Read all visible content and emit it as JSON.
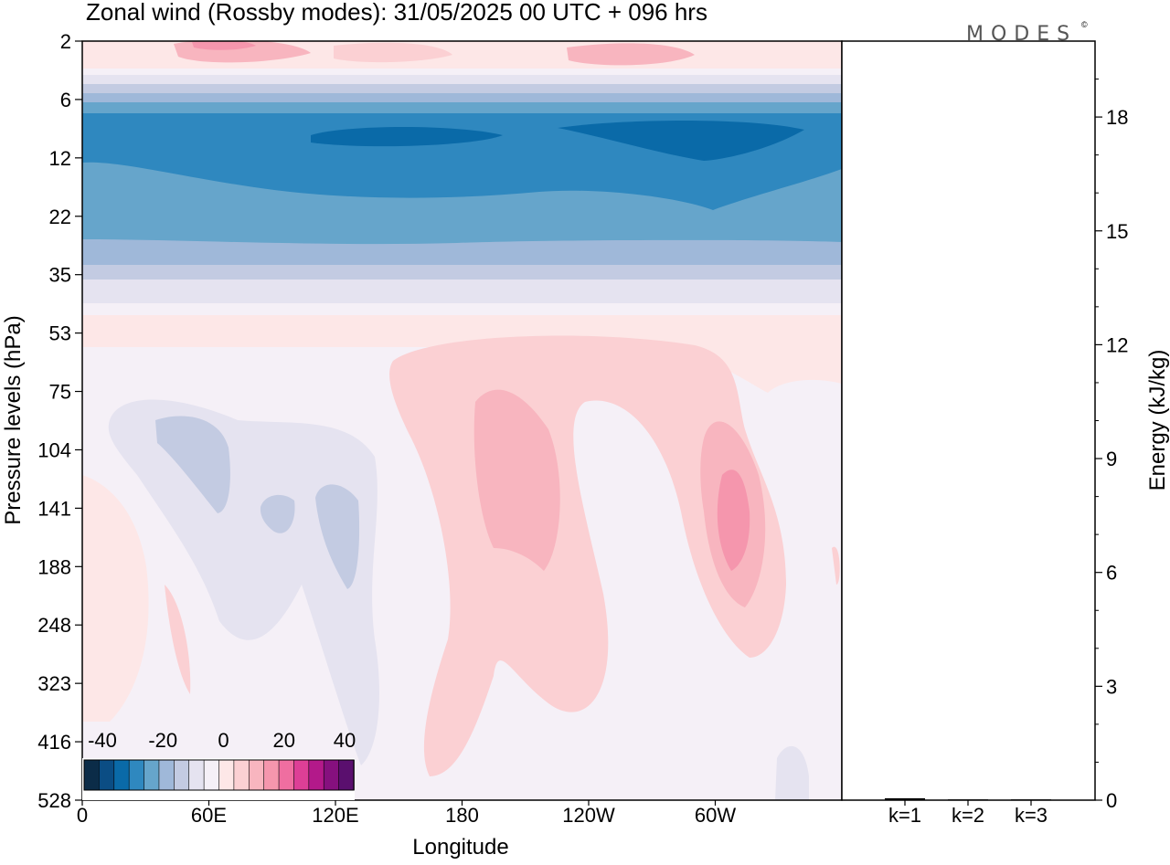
{
  "title": "Zonal wind (Rossby modes):  31/05/2025  00 UTC  + 096 hrs",
  "logo": "MODES",
  "logo_mark": "©",
  "chart_data": [
    {
      "type": "heatmap",
      "xlabel": "Longitude",
      "ylabel": "Pressure levels (hPa)",
      "x_ticks": [
        "0",
        "60E",
        "120E",
        "180",
        "120W",
        "60W"
      ],
      "y_ticks": [
        "2",
        "6",
        "12",
        "22",
        "35",
        "53",
        "75",
        "104",
        "141",
        "188",
        "248",
        "323",
        "416",
        "528"
      ],
      "y_scale": "log (pressure, increasing downward)",
      "colorbar": {
        "ticks": [
          "-40",
          "-20",
          "0",
          "20",
          "40"
        ],
        "colors": [
          "#0b2c48",
          "#0b4d84",
          "#0a6aa8",
          "#2f88bf",
          "#66a5cb",
          "#9fb8d9",
          "#c3cbe2",
          "#e5e3f0",
          "#f5f0f7",
          "#fde7e7",
          "#fbd0d3",
          "#f8b5bf",
          "#f596ad",
          "#ef6ea0",
          "#dd3f96",
          "#b3198a",
          "#86107e",
          "#5a0f6e"
        ]
      },
      "contour_features": [
        {
          "level": 0,
          "value": "-30",
          "lon_range": [
            "0",
            "60W"
          ],
          "pressure": "8-14"
        },
        {
          "level": 1,
          "value": "-20",
          "lon_range": [
            "0",
            "60W"
          ],
          "pressure": "6-26"
        },
        {
          "level": 2,
          "value": "5",
          "lon_range": [
            "60E",
            "180"
          ],
          "pressure": "2"
        },
        {
          "level": 3,
          "value": "10",
          "lon_range": [
            "180",
            "120W"
          ],
          "pressure": "80-200"
        },
        {
          "level": 4,
          "value": "15",
          "lon_range": [
            "60W",
            "60W"
          ],
          "pressure": "110-180"
        },
        {
          "level": 5,
          "value": "-5",
          "lon_range": [
            "30E",
            "120E"
          ],
          "pressure": "80-400"
        }
      ]
    },
    {
      "type": "bar",
      "categories": [
        "k=1",
        "k=2",
        "k=3"
      ],
      "values": [
        0.05,
        0.02,
        0.02
      ],
      "ylabel": "Energy (kJ/kg)",
      "y_ticks": [
        "0",
        "3",
        "6",
        "9",
        "12",
        "15",
        "18"
      ],
      "ylim": [
        0,
        20
      ]
    }
  ]
}
